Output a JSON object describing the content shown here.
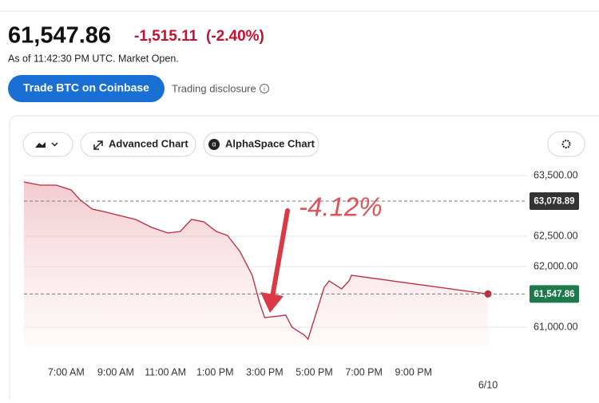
{
  "header": {
    "price": "61,547.86",
    "change": "-1,515.11",
    "change_percent": "(-2.40%)",
    "as_of": "As of 11:42:30 PM UTC. Market Open."
  },
  "actions": {
    "trade_button": "Trade BTC on Coinbase",
    "disclosure": "Trading disclosure"
  },
  "toolbar": {
    "advanced_chart": "Advanced Chart",
    "alphaspace_chart": "AlphaSpace Chart"
  },
  "chart_data": {
    "type": "line",
    "annotation": "-4.12%",
    "color": "#c0283c",
    "x": [
      5.3,
      5.95,
      6.6,
      7.2,
      7.55,
      8.05,
      8.5,
      9.15,
      9.8,
      10.45,
      11.1,
      11.6,
      12.05,
      12.55,
      13.05,
      13.5,
      14.0,
      14.5,
      14.8,
      15.0,
      15.85,
      16.1,
      16.6,
      16.75,
      17.1,
      17.4,
      17.6,
      18.1,
      18.4,
      18.5,
      24.0
    ],
    "values": [
      63395,
      63342,
      63342,
      63263,
      63105,
      62947,
      62908,
      62842,
      62776,
      62645,
      62553,
      62579,
      62776,
      62737,
      62579,
      62513,
      62250,
      61855,
      61395,
      61158,
      61197,
      61000,
      60868,
      60803,
      61263,
      61658,
      61763,
      61632,
      61763,
      61855,
      61547.86
    ],
    "xlim": [
      5.3,
      24.0
    ],
    "xticks": [
      {
        "value": 7,
        "label": "7:00 AM"
      },
      {
        "value": 9,
        "label": "9:00 AM"
      },
      {
        "value": 11,
        "label": "11:00 AM"
      },
      {
        "value": 13,
        "label": "1:00 PM"
      },
      {
        "value": 15,
        "label": "3:00 PM"
      },
      {
        "value": 17,
        "label": "5:00 PM"
      },
      {
        "value": 19,
        "label": "7:00 PM"
      },
      {
        "value": 21,
        "label": "9:00 PM"
      },
      {
        "value": 24,
        "label": "6/10"
      }
    ],
    "ylim": [
      60700,
      63650
    ],
    "yticks": [
      {
        "value": 61000,
        "label": "61,000.00"
      },
      {
        "value": 62000,
        "label": "62,000.00"
      },
      {
        "value": 62500,
        "label": "62,500.00"
      },
      {
        "value": 63500,
        "label": "63,500.00"
      }
    ],
    "reference_lines": [
      {
        "value": 63078.89,
        "label": "63,078.89",
        "color": "#333333"
      },
      {
        "value": 61547.86,
        "label": "61,547.86",
        "color": "#1e7a4c"
      }
    ],
    "grid": true
  }
}
